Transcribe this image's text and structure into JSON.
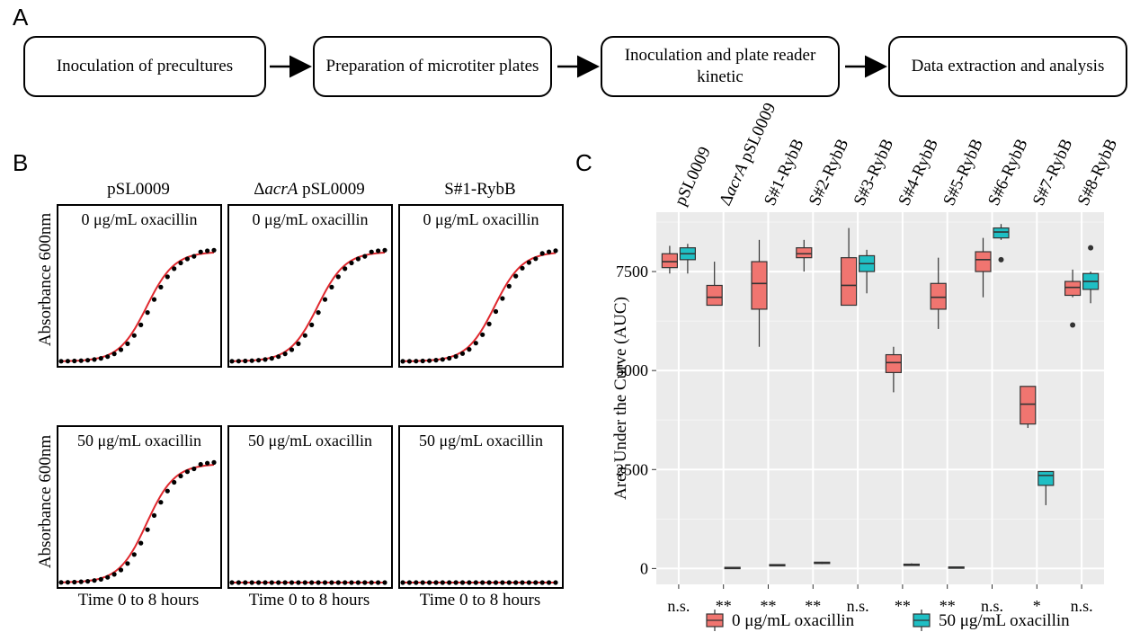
{
  "panels": {
    "a": "A",
    "b": "B",
    "c": "C"
  },
  "workflow": {
    "steps": [
      "Inoculation of precultures",
      "Preparation of microtiter plates",
      "Inoculation and plate reader kinetic",
      "Data extraction and analysis"
    ]
  },
  "growth_curves": {
    "strains": [
      "pSL0009",
      "ΔacrA pSL0009",
      "S#1-RybB"
    ],
    "conditions": [
      "0 μg/mL oxacillin",
      "50 μg/mL oxacillin"
    ],
    "ylabel": "Absorbance 600nm",
    "xlabel": "Time 0 to 8 hours",
    "growth": [
      [
        true,
        true,
        true
      ],
      [
        true,
        false,
        false
      ]
    ]
  },
  "chart_data": {
    "type": "boxplot",
    "ylabel": "Area Under the Curve (AUC)",
    "ylim": [
      -400,
      9000
    ],
    "yticks": [
      0,
      2500,
      5000,
      7500
    ],
    "grid": true,
    "categories": [
      "pSL0009",
      "ΔacrA pSL0009",
      "S#1-RybB",
      "S#2-RybB",
      "S#3-RybB",
      "S#4-RybB",
      "S#5-RybB",
      "S#6-RybB",
      "S#7-RybB",
      "S#8-RybB"
    ],
    "significance": [
      "n.s.",
      "**",
      "**",
      "**",
      "n.s.",
      "**",
      "**",
      "n.s.",
      "*",
      "n.s."
    ],
    "legend": {
      "position": "bottom"
    },
    "series": [
      {
        "name": "0 μg/mL oxacillin",
        "color": "#F07570",
        "boxes": [
          {
            "min": 7450,
            "q1": 7600,
            "median": 7750,
            "q3": 7950,
            "max": 8150,
            "outliers": []
          },
          {
            "min": 6650,
            "q1": 6650,
            "median": 6850,
            "q3": 7150,
            "max": 7750,
            "outliers": []
          },
          {
            "min": 5600,
            "q1": 6550,
            "median": 7200,
            "q3": 7750,
            "max": 8300,
            "outliers": []
          },
          {
            "min": 7500,
            "q1": 7850,
            "median": 7950,
            "q3": 8100,
            "max": 8300,
            "outliers": []
          },
          {
            "min": 6650,
            "q1": 6650,
            "median": 7150,
            "q3": 7850,
            "max": 8600,
            "outliers": []
          },
          {
            "min": 4450,
            "q1": 4950,
            "median": 5200,
            "q3": 5400,
            "max": 5600,
            "outliers": []
          },
          {
            "min": 6050,
            "q1": 6550,
            "median": 6850,
            "q3": 7200,
            "max": 7850,
            "outliers": []
          },
          {
            "min": 6850,
            "q1": 7500,
            "median": 7800,
            "q3": 8000,
            "max": 8350,
            "outliers": []
          },
          {
            "min": 3550,
            "q1": 3650,
            "median": 4150,
            "q3": 4600,
            "max": 4600,
            "outliers": []
          },
          {
            "min": 6850,
            "q1": 6900,
            "median": 7100,
            "q3": 7250,
            "max": 7550,
            "outliers": [
              6150
            ]
          }
        ]
      },
      {
        "name": "50 μg/mL oxacillin",
        "color": "#1FBFC4",
        "boxes": [
          {
            "min": 7450,
            "q1": 7800,
            "median": 7950,
            "q3": 8100,
            "max": 8200,
            "outliers": []
          },
          {
            "min": 10,
            "q1": 10,
            "median": 20,
            "q3": 30,
            "max": 30,
            "outliers": []
          },
          {
            "min": 70,
            "q1": 80,
            "median": 90,
            "q3": 100,
            "max": 110,
            "outliers": []
          },
          {
            "min": 110,
            "q1": 130,
            "median": 150,
            "q3": 160,
            "max": 170,
            "outliers": []
          },
          {
            "min": 6950,
            "q1": 7500,
            "median": 7700,
            "q3": 7900,
            "max": 8050,
            "outliers": []
          },
          {
            "min": 70,
            "q1": 80,
            "median": 100,
            "q3": 110,
            "max": 130,
            "outliers": []
          },
          {
            "min": 10,
            "q1": 20,
            "median": 30,
            "q3": 40,
            "max": 40,
            "outliers": []
          },
          {
            "min": 8300,
            "q1": 8350,
            "median": 8500,
            "q3": 8600,
            "max": 8700,
            "outliers": [
              7800
            ]
          },
          {
            "min": 1600,
            "q1": 2100,
            "median": 2350,
            "q3": 2450,
            "max": 2450,
            "outliers": []
          },
          {
            "min": 6700,
            "q1": 7050,
            "median": 7250,
            "q3": 7450,
            "max": 7500,
            "outliers": [
              8100
            ]
          }
        ]
      }
    ]
  }
}
